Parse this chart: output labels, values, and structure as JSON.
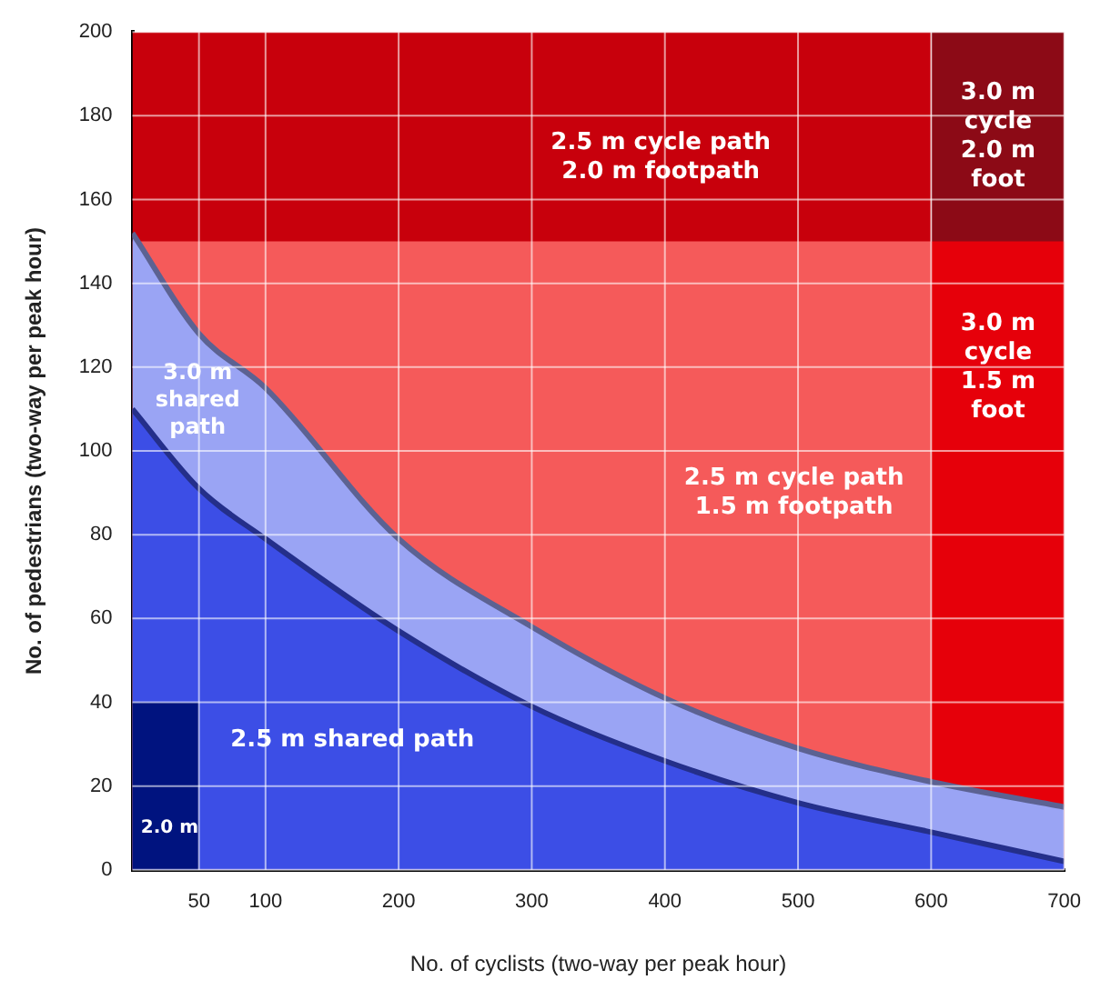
{
  "chart_data": {
    "type": "area",
    "xlabel": "No. of cyclists (two-way per peak hour)",
    "ylabel": "No. of pedestrians (two-way per peak hour)",
    "xlim": [
      0,
      700
    ],
    "xticks": [
      50,
      100,
      200,
      300,
      400,
      500,
      600,
      700
    ],
    "ylim": [
      0,
      200
    ],
    "yticks": [
      0,
      20,
      40,
      60,
      80,
      100,
      120,
      140,
      160,
      180,
      200
    ],
    "grid": true,
    "legend": false,
    "marker": "none",
    "series": [
      {
        "name": "2.5 m cycle path\n2.0 m footpath",
        "color": "#c8000c",
        "x": [
          0,
          600
        ],
        "values": [
          200,
          200
        ]
      },
      {
        "name": "3.0 m\ncycle\n2.0 m\nfoot",
        "color": "#8c0a16",
        "x": [
          600,
          700
        ],
        "values": [
          200,
          200
        ]
      },
      {
        "name": "2.5 m cycle path\n1.5 m footpath",
        "color": "#f55a5a",
        "x": [
          0,
          600
        ],
        "values": [
          150,
          150
        ]
      },
      {
        "name": "3.0 m\ncycle\n1.5 m\nfoot",
        "color": "#e6000a",
        "x": [
          600,
          700
        ],
        "values": [
          150,
          150
        ]
      },
      {
        "name": "3.0 m\nshared\npath",
        "color": "#9aa4f4",
        "x": [
          0,
          50,
          100,
          200,
          300,
          400,
          500,
          600,
          700
        ],
        "values": [
          152,
          128,
          115,
          79,
          58,
          41,
          29,
          21,
          15
        ]
      },
      {
        "name": "2.5 m shared path",
        "color": "#3c4ee6",
        "x": [
          0,
          50,
          100,
          200,
          300,
          400,
          500,
          600,
          700
        ],
        "values": [
          110,
          91,
          79,
          57,
          39,
          26,
          16,
          9,
          2
        ]
      },
      {
        "name": "2.0 m",
        "color": "#00137f",
        "x": [
          0,
          50
        ],
        "values": [
          40,
          40
        ]
      }
    ]
  }
}
